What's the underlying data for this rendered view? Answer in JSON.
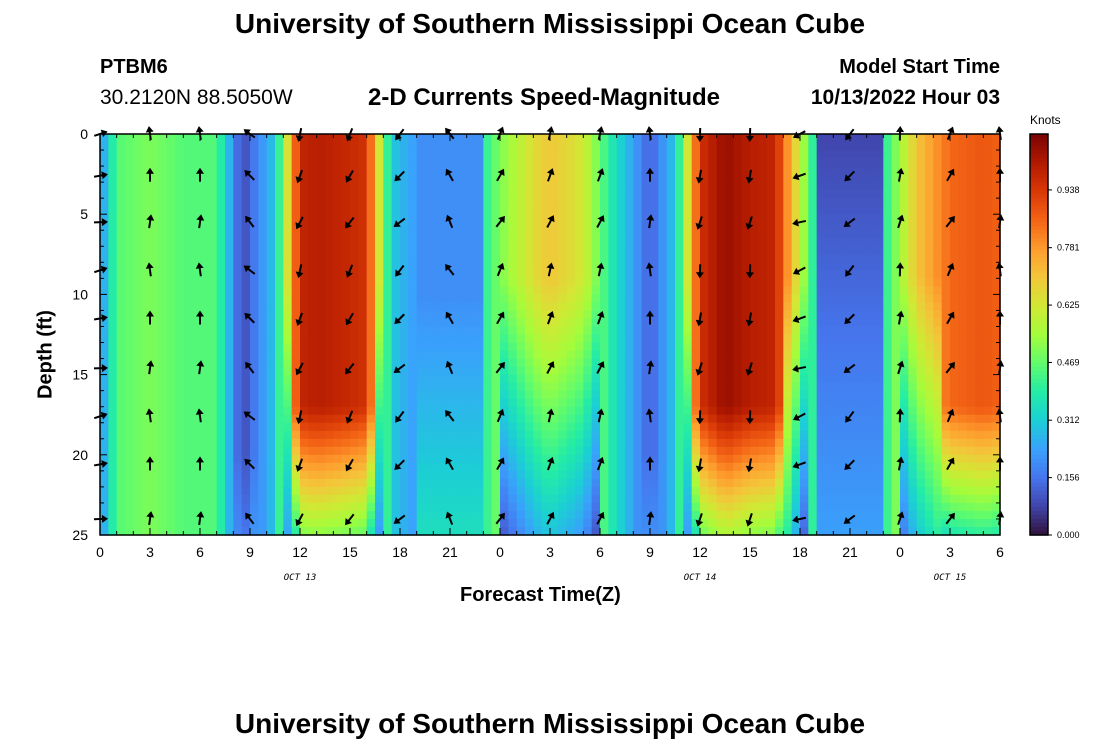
{
  "titles": {
    "main": "University of Southern Mississippi Ocean Cube",
    "footer": "University of Southern Mississippi Ocean Cube",
    "station": "PTBM6",
    "coords": "30.2120N  88.5050W",
    "subtitle": "2-D Currents Speed-Magnitude",
    "model_start_label": "Model Start Time",
    "model_start_value": "10/13/2022 Hour 03"
  },
  "chart_data": {
    "type": "heatmap",
    "title": "2-D Currents Speed-Magnitude",
    "xlabel": "Forecast Time(Z)",
    "ylabel": "Depth (ft)",
    "units_label": "Knots",
    "xlim": [
      0,
      54
    ],
    "ylim": [
      0,
      25
    ],
    "x_ticks": [
      0,
      3,
      6,
      9,
      12,
      15,
      18,
      21,
      24,
      27,
      30,
      33,
      36,
      39,
      42,
      45,
      48,
      51,
      54
    ],
    "x_tick_labels": [
      "0",
      "3",
      "6",
      "9",
      "12",
      "15",
      "18",
      "21",
      "0",
      "3",
      "6",
      "9",
      "12",
      "15",
      "18",
      "21",
      "0",
      "3",
      "6"
    ],
    "date_labels": [
      {
        "x": 12,
        "text": "OCT 13"
      },
      {
        "x": 36,
        "text": "OCT 14"
      },
      {
        "x": 51,
        "text": "OCT 15"
      }
    ],
    "y_ticks": [
      0,
      5,
      10,
      15,
      20,
      25
    ],
    "y_tick_labels": [
      "0",
      "5",
      "10",
      "15",
      "20",
      "25"
    ],
    "colorbar": {
      "min": 0.0,
      "max": 1.09,
      "tick_values": [
        0.0,
        0.156,
        0.312,
        0.469,
        0.625,
        0.781,
        0.938
      ],
      "tick_labels": [
        "0.000",
        "0.156",
        "0.312",
        "0.469",
        "0.625",
        "0.781",
        "0.938"
      ]
    },
    "colormap": [
      "#30123b",
      "#4145ab",
      "#4675ed",
      "#39a2fc",
      "#1bcfd4",
      "#24eca6",
      "#61fc6c",
      "#a4fc3b",
      "#d1e834",
      "#f3c63a",
      "#fe9b2d",
      "#f36315",
      "#d93806",
      "#b11901",
      "#7a0403"
    ],
    "speed_profile_by_hour": [
      0.2,
      0.45,
      0.5,
      0.45,
      0.45,
      0.08,
      0.3,
      0.98,
      1.0,
      0.98,
      0.95,
      0.3,
      0.22,
      0.34,
      0.28,
      0.5,
      0.65,
      0.7,
      0.62,
      0.4,
      0.12,
      0.3,
      0.95,
      1.05,
      1.0,
      0.98,
      0.6,
      0.08,
      0.12,
      0.3,
      0.7,
      0.85,
      0.88,
      0.86
    ],
    "speed_profile_hours": [
      0,
      1,
      3,
      5,
      7,
      8.5,
      10.5,
      12,
      13,
      14.5,
      16,
      17.5,
      19,
      20.5,
      22,
      24,
      26,
      27,
      29,
      30.5,
      33,
      34.5,
      36,
      37.5,
      39,
      40.5,
      42,
      44,
      45,
      46.5,
      49,
      51,
      53,
      54
    ],
    "arrow_hours": [
      0,
      3,
      6,
      9,
      12,
      15,
      18,
      21,
      24,
      27,
      30,
      33,
      36,
      39,
      42,
      45,
      48,
      51,
      54
    ],
    "arrow_depths": [
      0,
      2.6,
      5.5,
      8.5,
      11.5,
      14.6,
      17.6,
      20.6,
      24
    ],
    "arrow_direction_deg_by_hour": [
      80,
      0,
      0,
      315,
      200,
      210,
      225,
      330,
      30,
      20,
      20,
      0,
      190,
      190,
      250,
      225,
      10,
      30,
      0
    ],
    "arrow_glyph": "arrow"
  }
}
